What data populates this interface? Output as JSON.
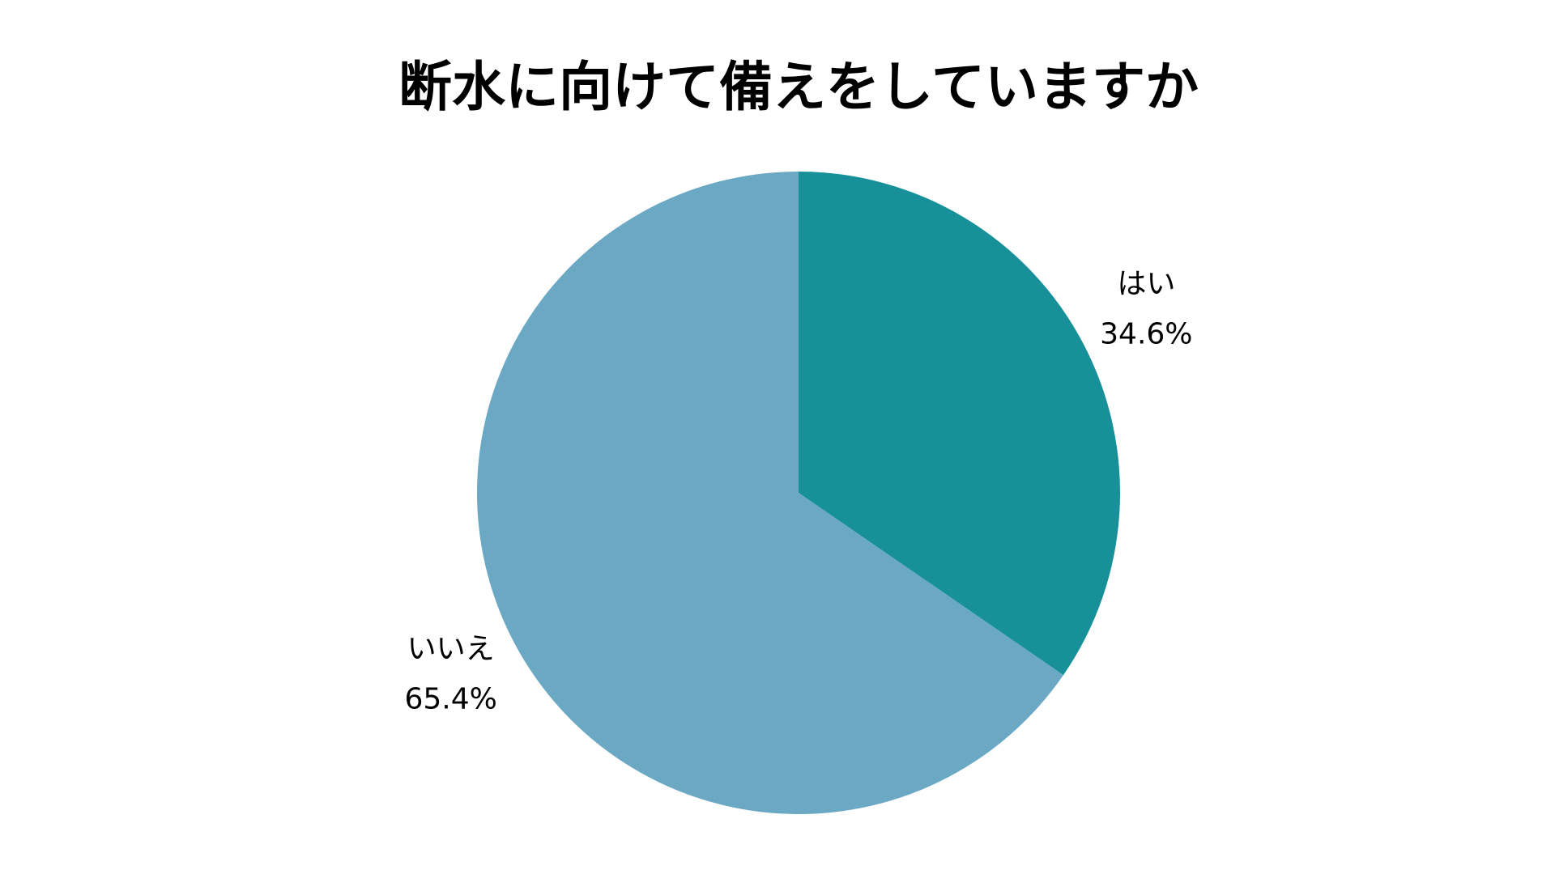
{
  "chart_data": {
    "type": "pie",
    "title": "断水に向けて備えをしていますか",
    "categories": [
      "はい",
      "いいえ"
    ],
    "values": [
      34.6,
      65.4
    ],
    "value_labels": [
      "34.6%",
      "65.4%"
    ],
    "colors": [
      "#17909a",
      "#6aa8c4"
    ]
  }
}
